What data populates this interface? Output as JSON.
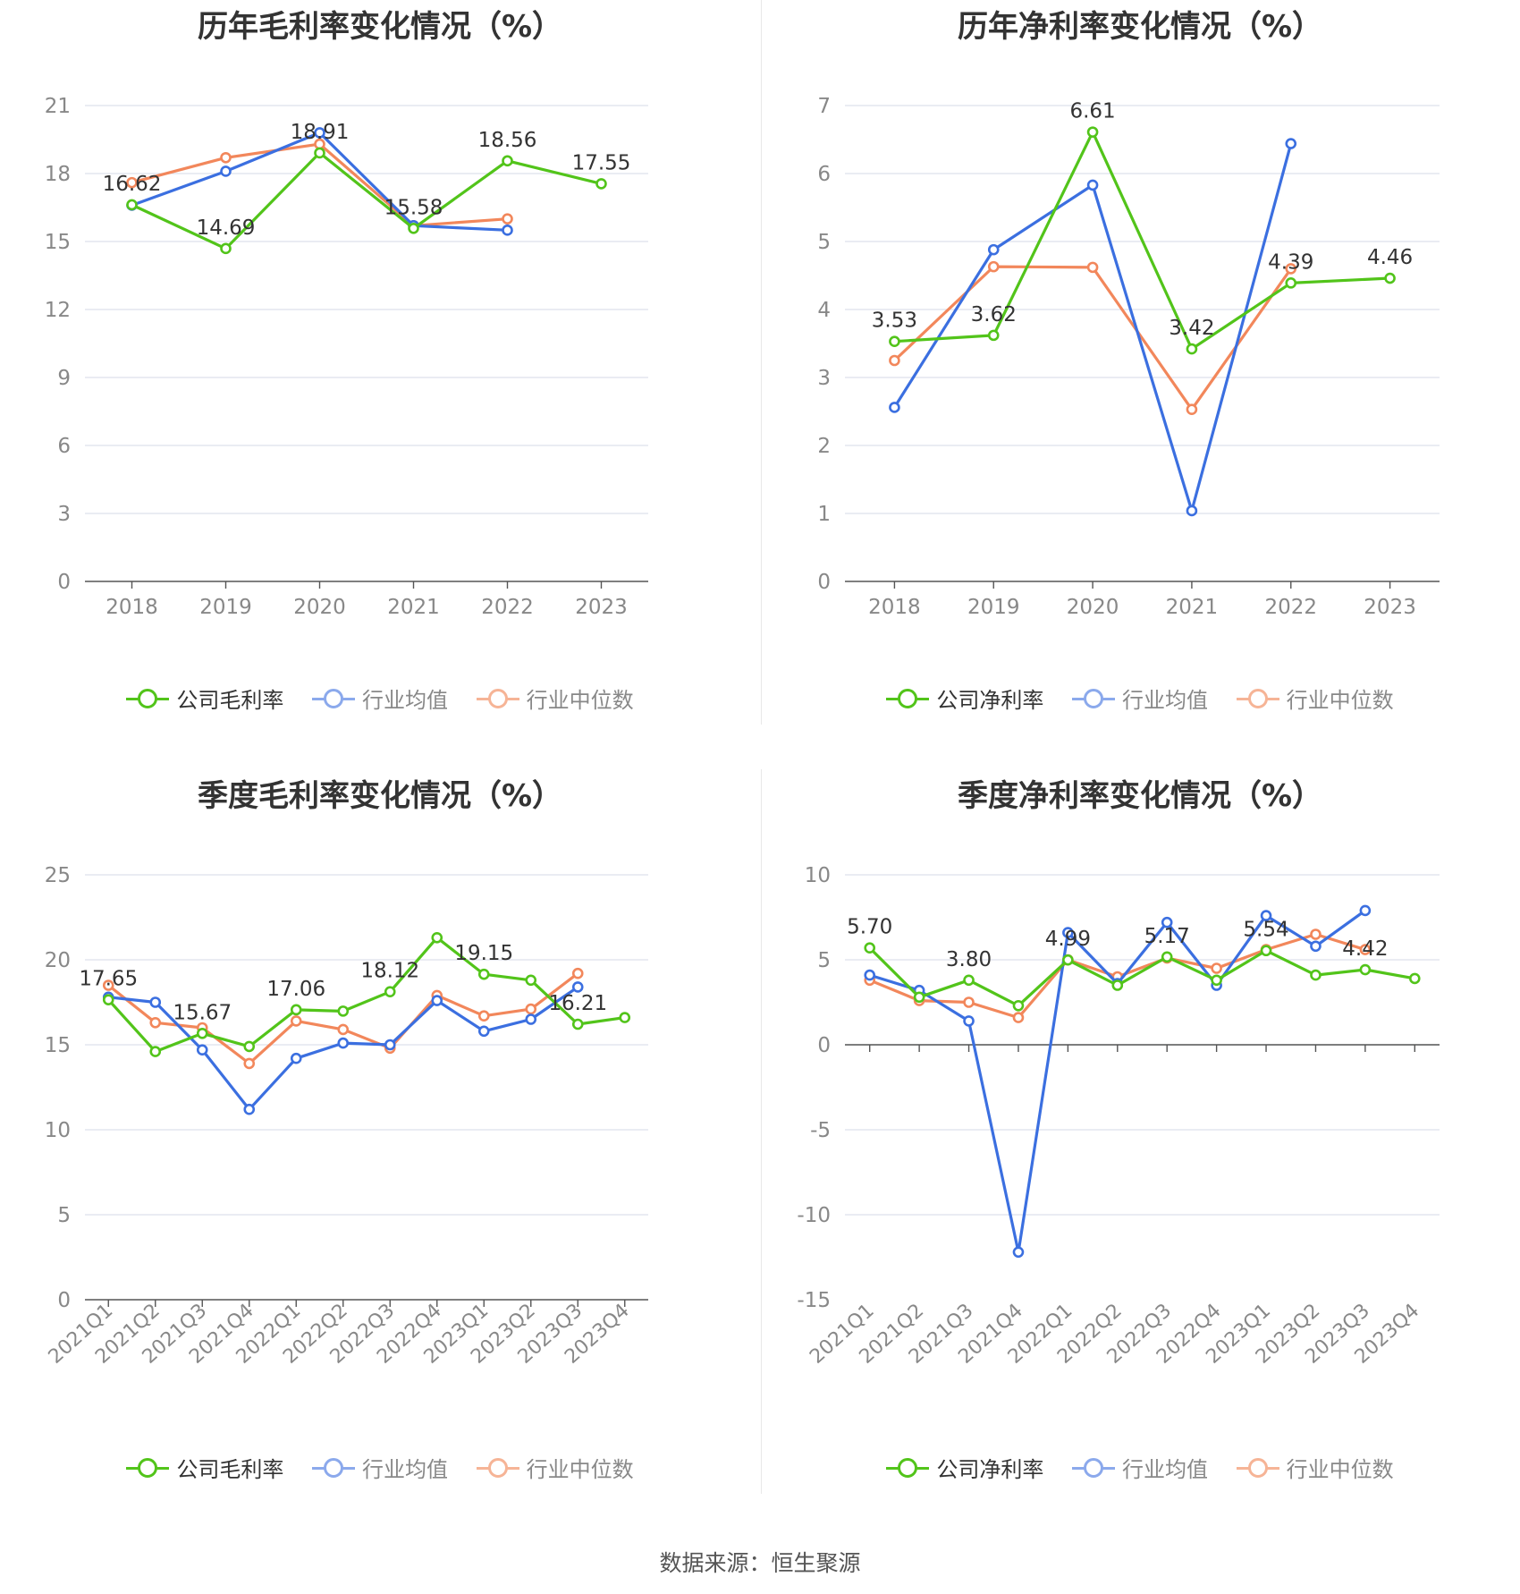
{
  "colors": {
    "company": "#52c41a",
    "avg": "#3b6fe0",
    "median": "#f2875b",
    "grid": "#dde1ec",
    "axis": "#555555",
    "tick": "#888888"
  },
  "source": "数据来源：恒生聚源",
  "charts": [
    {
      "id": "annual-gross",
      "title": "历年毛利率变化情况（%）",
      "legend": [
        "公司毛利率",
        "行业均值",
        "行业中位数"
      ],
      "chart_data": {
        "type": "line",
        "categories": [
          "2018",
          "2019",
          "2020",
          "2021",
          "2022",
          "2023"
        ],
        "ylim": [
          0,
          21
        ],
        "yticks": [
          0,
          3,
          6,
          9,
          12,
          15,
          18,
          21
        ],
        "series": [
          {
            "name": "公司毛利率",
            "values": [
              16.62,
              14.69,
              18.91,
              15.58,
              18.56,
              17.55
            ],
            "labels": [
              0,
              1,
              2,
              3,
              4,
              5
            ]
          },
          {
            "name": "行业均值",
            "values": [
              16.6,
              18.1,
              19.8,
              15.7,
              15.5,
              null
            ]
          },
          {
            "name": "行业中位数",
            "values": [
              17.6,
              18.7,
              19.3,
              15.7,
              16.0,
              null
            ]
          }
        ]
      }
    },
    {
      "id": "annual-net",
      "title": "历年净利率变化情况（%）",
      "legend": [
        "公司净利率",
        "行业均值",
        "行业中位数"
      ],
      "chart_data": {
        "type": "line",
        "categories": [
          "2018",
          "2019",
          "2020",
          "2021",
          "2022",
          "2023"
        ],
        "ylim": [
          0,
          7
        ],
        "yticks": [
          0,
          1,
          2,
          3,
          4,
          5,
          6,
          7
        ],
        "series": [
          {
            "name": "公司净利率",
            "values": [
              3.53,
              3.62,
              6.61,
              3.42,
              4.39,
              4.46
            ],
            "labels": [
              0,
              1,
              2,
              3,
              4,
              5
            ]
          },
          {
            "name": "行业均值",
            "values": [
              2.56,
              4.88,
              5.83,
              1.04,
              6.44,
              null
            ]
          },
          {
            "name": "行业中位数",
            "values": [
              3.25,
              4.63,
              4.62,
              2.53,
              4.6,
              null
            ]
          }
        ]
      }
    },
    {
      "id": "quarterly-gross",
      "title": "季度毛利率变化情况（%）",
      "legend": [
        "公司毛利率",
        "行业均值",
        "行业中位数"
      ],
      "chart_data": {
        "type": "line",
        "categories": [
          "2021Q1",
          "2021Q2",
          "2021Q3",
          "2021Q4",
          "2022Q1",
          "2022Q2",
          "2022Q3",
          "2022Q4",
          "2023Q1",
          "2023Q2",
          "2023Q3",
          "2023Q4"
        ],
        "ylim": [
          0,
          25
        ],
        "yticks": [
          0,
          5,
          10,
          15,
          20,
          25
        ],
        "series": [
          {
            "name": "公司毛利率",
            "values": [
              17.65,
              14.6,
              15.67,
              14.9,
              17.06,
              16.98,
              18.12,
              21.3,
              19.15,
              18.8,
              16.21,
              16.6
            ],
            "labels": [
              0,
              2,
              4,
              6,
              8,
              10
            ]
          },
          {
            "name": "行业均值",
            "values": [
              17.8,
              17.5,
              14.7,
              11.2,
              14.2,
              15.1,
              15.0,
              17.6,
              15.8,
              16.5,
              18.4,
              null
            ]
          },
          {
            "name": "行业中位数",
            "values": [
              18.5,
              16.3,
              16.0,
              13.9,
              16.4,
              15.9,
              14.8,
              17.9,
              16.7,
              17.1,
              19.2,
              null
            ]
          }
        ]
      }
    },
    {
      "id": "quarterly-net",
      "title": "季度净利率变化情况（%）",
      "legend": [
        "公司净利率",
        "行业均值",
        "行业中位数"
      ],
      "chart_data": {
        "type": "line",
        "categories": [
          "2021Q1",
          "2021Q2",
          "2021Q3",
          "2021Q4",
          "2022Q1",
          "2022Q2",
          "2022Q3",
          "2022Q4",
          "2023Q1",
          "2023Q2",
          "2023Q3",
          "2023Q4"
        ],
        "ylim": [
          -15,
          10
        ],
        "yticks": [
          -15,
          -10,
          -5,
          0,
          5,
          10
        ],
        "series": [
          {
            "name": "公司净利率",
            "values": [
              5.7,
              2.8,
              3.8,
              2.3,
              4.99,
              3.5,
              5.17,
              3.8,
              5.54,
              4.1,
              4.42,
              3.9
            ],
            "labels": [
              0,
              2,
              4,
              6,
              8,
              10
            ]
          },
          {
            "name": "行业均值",
            "values": [
              4.1,
              3.2,
              1.4,
              -12.2,
              6.6,
              3.6,
              7.2,
              3.5,
              7.6,
              5.8,
              7.9,
              null
            ]
          },
          {
            "name": "行业中位数",
            "values": [
              3.8,
              2.6,
              2.5,
              1.6,
              5.0,
              4.0,
              5.1,
              4.5,
              5.6,
              6.5,
              5.6,
              null
            ]
          }
        ]
      }
    }
  ]
}
